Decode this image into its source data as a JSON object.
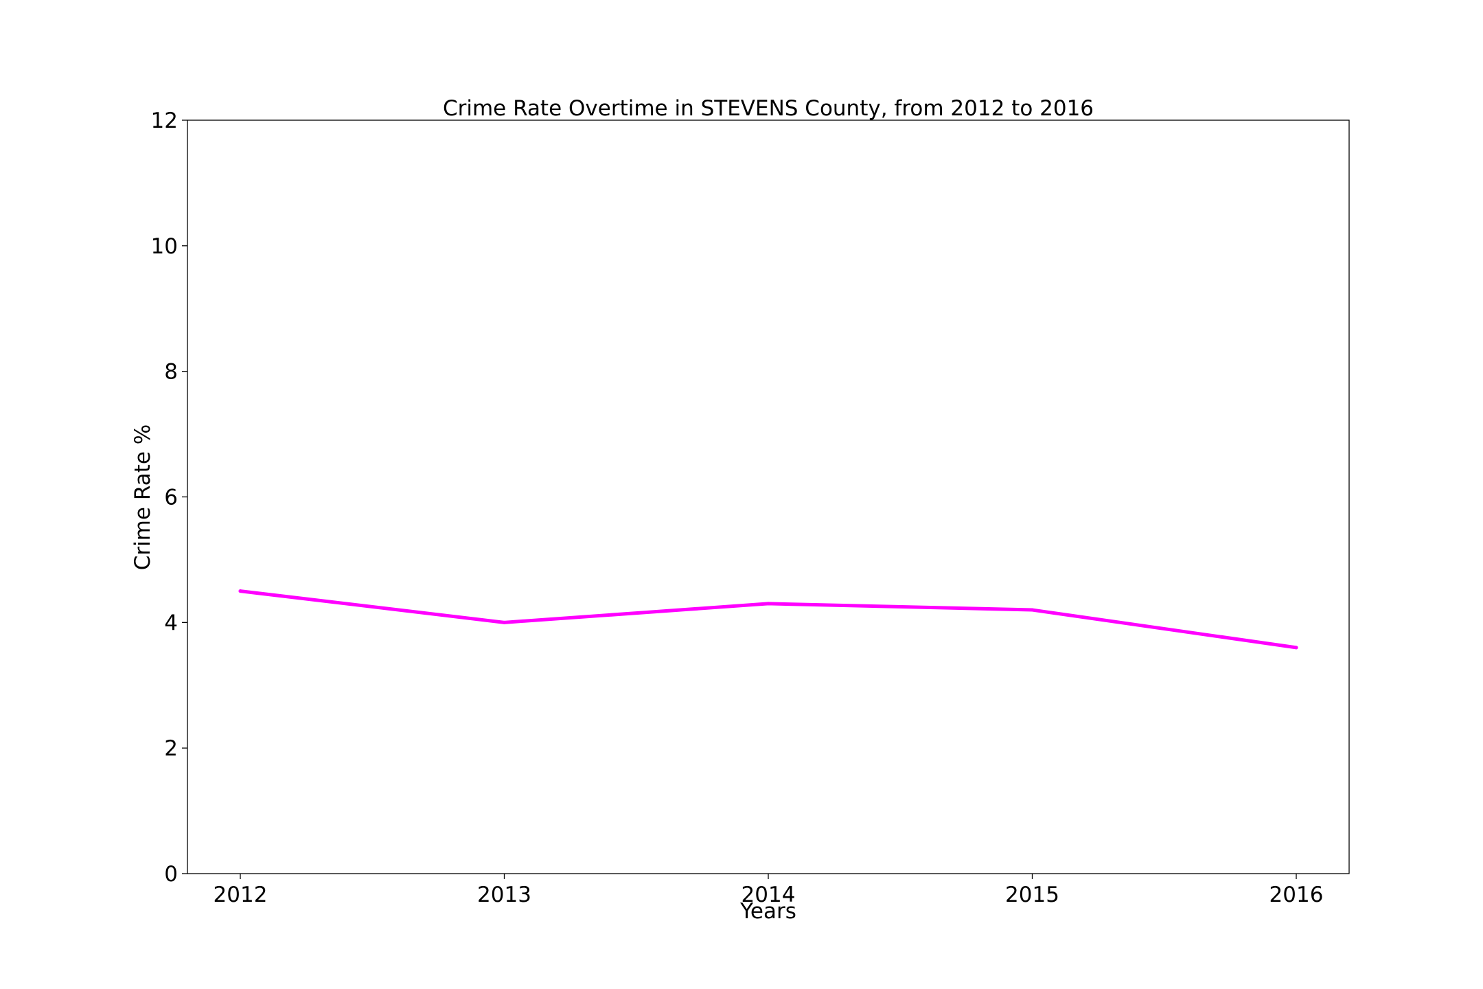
{
  "chart_data": {
    "type": "line",
    "title": "Crime Rate Overtime in STEVENS County, from 2012 to 2016",
    "xlabel": "Years",
    "ylabel": "Crime Rate %",
    "x": [
      "2012",
      "2013",
      "2014",
      "2015",
      "2016"
    ],
    "series": [
      {
        "values": [
          4.5,
          4.0,
          4.3,
          4.2,
          3.6
        ],
        "color": "#ff00ff"
      }
    ],
    "ylim": [
      0,
      12
    ],
    "yticks": [
      0,
      2,
      4,
      6,
      8,
      10,
      12
    ],
    "grid": false,
    "legend": false
  }
}
